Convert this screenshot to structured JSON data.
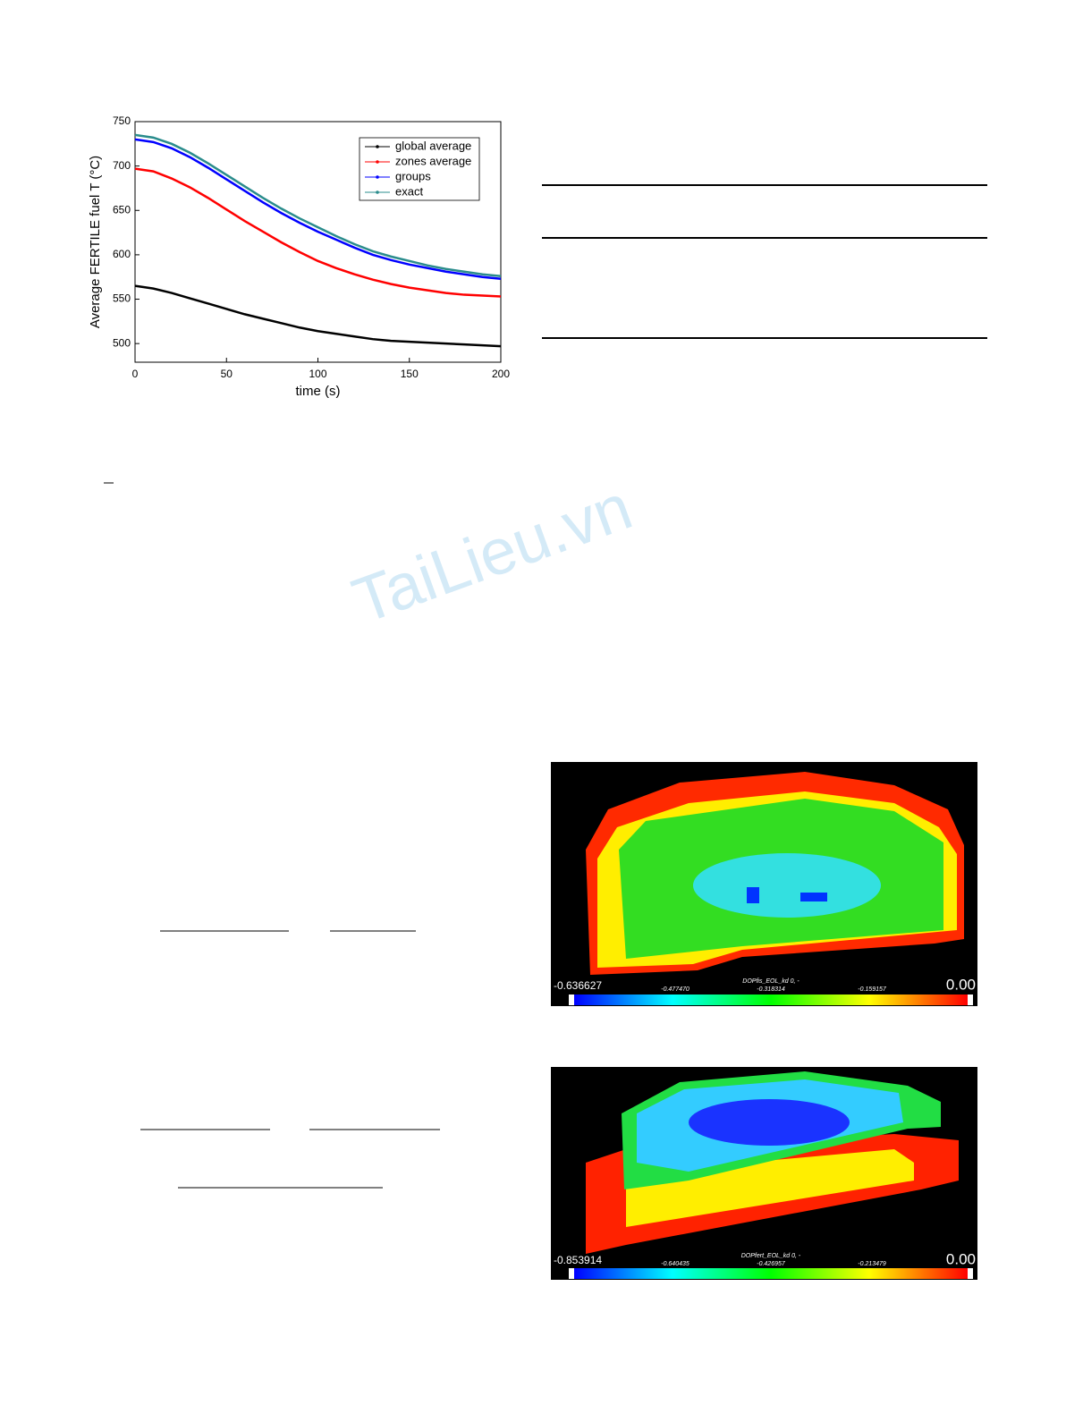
{
  "chart_data": {
    "type": "line",
    "xlabel": "time (s)",
    "ylabel": "Average FERTILE fuel T (°C)",
    "x": [
      0,
      10,
      20,
      30,
      40,
      50,
      60,
      70,
      80,
      90,
      100,
      110,
      120,
      130,
      140,
      150,
      160,
      170,
      180,
      190,
      200
    ],
    "series": [
      {
        "name": "global average",
        "color": "#000000",
        "values": [
          565,
          562,
          557,
          551,
          545,
          539,
          533,
          528,
          523,
          518,
          514,
          511,
          508,
          505,
          503,
          502,
          501,
          500,
          499,
          498,
          497
        ]
      },
      {
        "name": "zones average",
        "color": "#ff0000",
        "values": [
          697,
          694,
          686,
          676,
          664,
          651,
          638,
          626,
          614,
          603,
          593,
          585,
          578,
          572,
          567,
          563,
          560,
          557,
          555,
          554,
          553
        ]
      },
      {
        "name": "groups",
        "color": "#0000ff",
        "values": [
          730,
          727,
          720,
          710,
          698,
          685,
          672,
          659,
          647,
          636,
          626,
          617,
          608,
          600,
          594,
          589,
          585,
          581,
          578,
          575,
          573
        ]
      },
      {
        "name": "exact",
        "color": "#2a8c8c",
        "values": [
          735,
          732,
          725,
          715,
          703,
          690,
          677,
          664,
          652,
          641,
          631,
          621,
          612,
          604,
          598,
          593,
          588,
          584,
          581,
          578,
          576
        ]
      }
    ],
    "xlim": [
      0,
      200
    ],
    "xticks": [
      0,
      50,
      100,
      150,
      200
    ],
    "ylim": [
      479,
      750
    ],
    "yticks": [
      500,
      550,
      600,
      650,
      700,
      750
    ],
    "legend": "upper right"
  },
  "watermark": "TaiLieu.vn",
  "figures": [
    {
      "colorbar": {
        "min_label": "-0.636627",
        "title": "DOPfis_EOL_kd 0, -",
        "tick_labels": [
          "-0.477470",
          "-0.318314",
          "-0.159157"
        ],
        "max_label": "0.00"
      }
    },
    {
      "colorbar": {
        "min_label": "-0.853914",
        "title": "DOPfert_EOL_kd 0, -",
        "tick_labels": [
          "-0.640435",
          "-0.426957",
          "-0.213479"
        ],
        "max_label": "0.00"
      }
    }
  ]
}
